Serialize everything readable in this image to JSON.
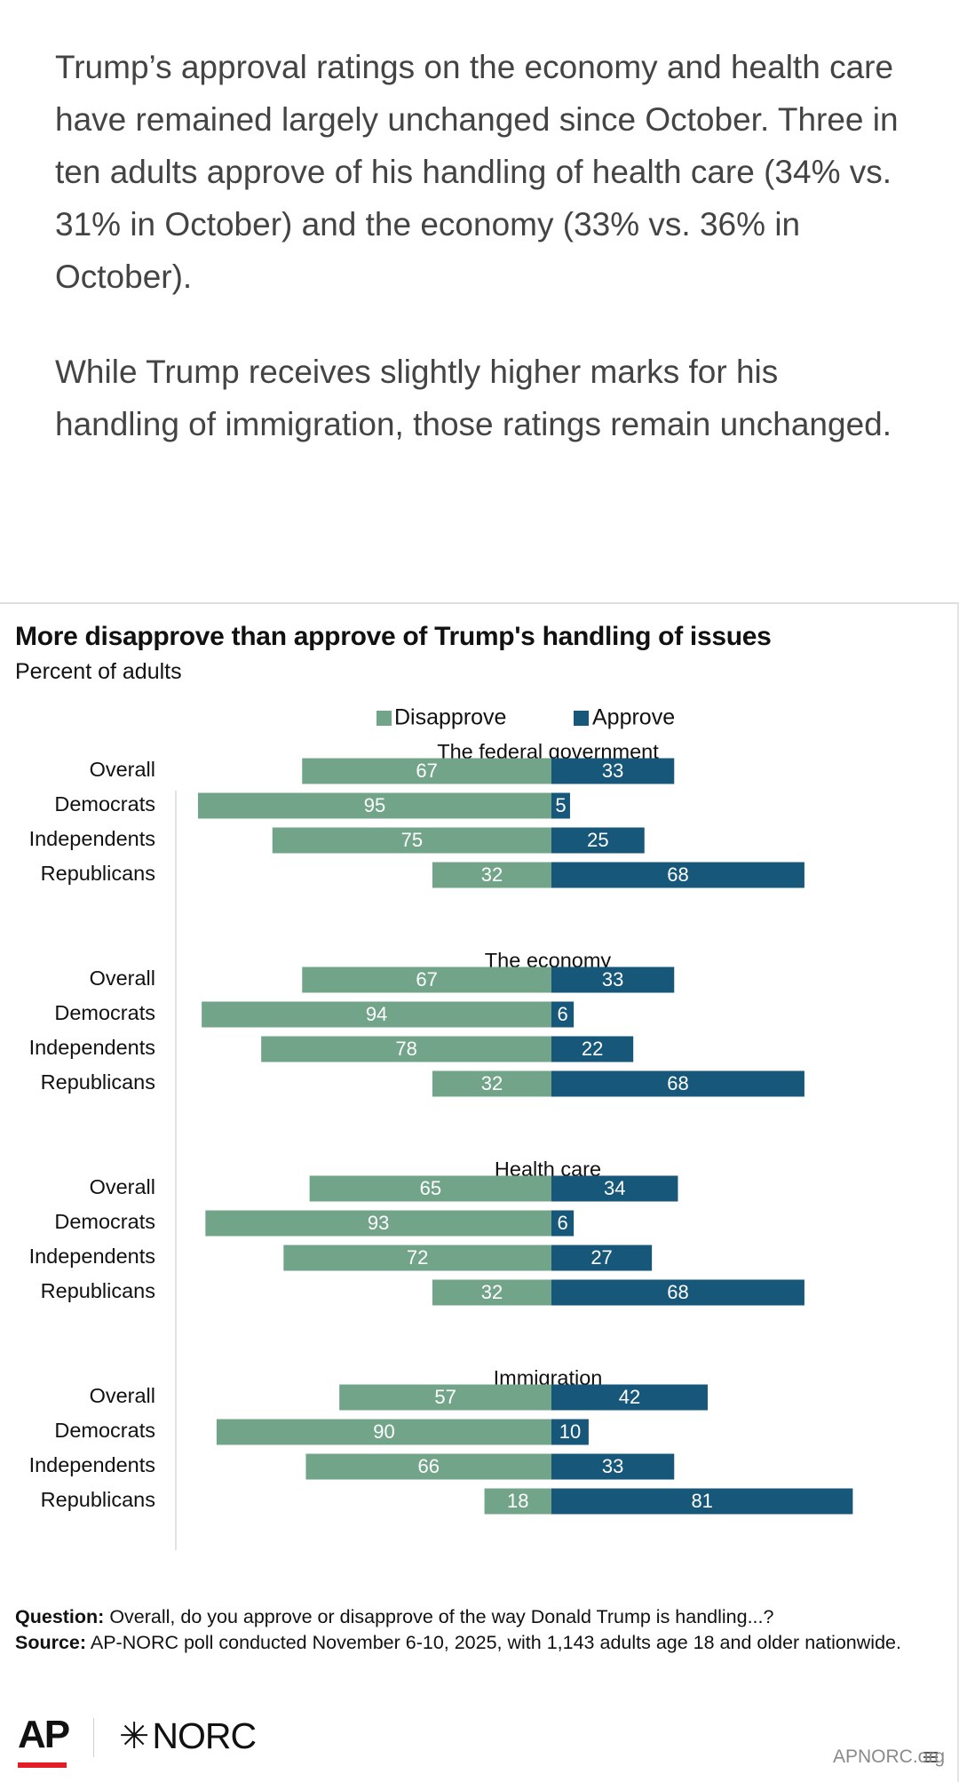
{
  "article": {
    "paragraph_1": "Trump’s approval ratings on the economy and health care have remained largely unchanged since October. Three in ten adults approve of his handling of health care (34% vs. 31% in October) and the economy (33% vs. 36% in October).",
    "paragraph_2": "While Trump receives slightly higher marks for his handling of immigration, those ratings remain unchanged."
  },
  "chart_data": {
    "type": "bar",
    "orientation": "horizontal-diverging",
    "title": "More disapprove than approve of Trump's handling of issues",
    "subtitle": "Percent of adults",
    "legend": [
      {
        "name": "Disapprove",
        "color": "#72a48a"
      },
      {
        "name": "Approve",
        "color": "#16577a"
      }
    ],
    "categories": [
      "Overall",
      "Democrats",
      "Independents",
      "Republicans"
    ],
    "panels": [
      {
        "title": "The federal government",
        "disapprove": [
          67,
          95,
          75,
          32
        ],
        "approve": [
          33,
          5,
          25,
          68
        ]
      },
      {
        "title": "The economy",
        "disapprove": [
          67,
          94,
          78,
          32
        ],
        "approve": [
          33,
          6,
          22,
          68
        ]
      },
      {
        "title": "Health care",
        "disapprove": [
          65,
          93,
          72,
          32
        ],
        "approve": [
          34,
          6,
          27,
          68
        ]
      },
      {
        "title": "Immigration",
        "disapprove": [
          57,
          90,
          66,
          18
        ],
        "approve": [
          42,
          10,
          33,
          81
        ]
      }
    ],
    "xlim": [
      -100,
      100
    ],
    "xlabel": "",
    "ylabel": ""
  },
  "footnote": {
    "question_label": "Question:",
    "question_text": " Overall, do you approve or disapprove of the way Donald Trump is handling...?",
    "source_label": "Source:",
    "source_text": " AP-NORC poll conducted November 6-10, 2025, with 1,143 adults age 18 and older nationwide."
  },
  "logos": {
    "ap": "AP",
    "norc_star": "✳",
    "norc": "NORC"
  },
  "watermark": "APNORC.org",
  "colors": {
    "disapprove": "#72a48a",
    "approve": "#16577a",
    "text": "#111111"
  }
}
